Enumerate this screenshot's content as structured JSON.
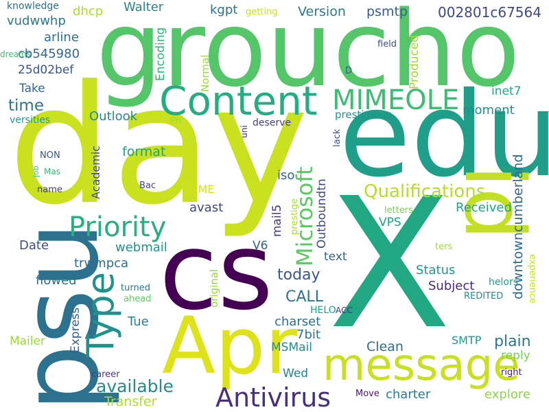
{
  "words": [
    {
      "text": "groucho",
      "color": "#54c568"
    },
    {
      "text": "day",
      "color": "#cae11f"
    },
    {
      "text": "edu",
      "color": "#1f9e89"
    },
    {
      "text": "X",
      "color": "#22a785"
    },
    {
      "text": "cs",
      "color": "#440154"
    },
    {
      "text": "psu",
      "color": "#2c718e"
    },
    {
      "text": "Apr",
      "color": "#dde318"
    },
    {
      "text": "id",
      "color": "#c2df23"
    },
    {
      "text": "message",
      "color": "#c8e020"
    },
    {
      "text": "Content",
      "color": "#25ac82"
    },
    {
      "text": "Type",
      "color": "#21918c"
    },
    {
      "text": "Priority",
      "color": "#29af7f"
    },
    {
      "text": "Antivirus",
      "color": "#46307e"
    },
    {
      "text": "MIMEOLE",
      "color": "#3dbc74"
    },
    {
      "text": "Microsoft",
      "color": "#5cc863"
    },
    {
      "text": "Qualifications",
      "color": "#b5de2b"
    },
    {
      "text": "downtowncumberland",
      "color": "#306a8e"
    },
    {
      "text": "002801c67564",
      "color": "#3f4889"
    },
    {
      "text": "Version",
      "color": "#2a778e"
    },
    {
      "text": "psmtp",
      "color": "#365d8d"
    },
    {
      "text": "kgpt",
      "color": "#2d708e"
    },
    {
      "text": "Walter",
      "color": "#25858e"
    },
    {
      "text": "dhcp",
      "color": "#addc30"
    },
    {
      "text": "knowledge",
      "color": "#2e6f8e"
    },
    {
      "text": "getting",
      "color": "#c8e020"
    },
    {
      "text": "field",
      "color": "#3e4c8a"
    },
    {
      "text": "Produced",
      "color": "#a2da37"
    },
    {
      "text": "vudwwhp",
      "color": "#2a788e"
    },
    {
      "text": "arline",
      "color": "#2e6e8e"
    },
    {
      "text": "cb545980",
      "color": "#31668e"
    },
    {
      "text": "dreams",
      "color": "#3bbb75"
    },
    {
      "text": "Normal",
      "color": "#9bd93c"
    },
    {
      "text": "Encoding",
      "color": "#31b57b"
    },
    {
      "text": "25d02bef",
      "color": "#3a538b"
    },
    {
      "text": "D",
      "color": "#3b528b"
    },
    {
      "text": "Take",
      "color": "#32658e"
    },
    {
      "text": "inet7",
      "color": "#21a685"
    },
    {
      "text": "time",
      "color": "#2b748e"
    },
    {
      "text": "moment",
      "color": "#228d8d"
    },
    {
      "text": "prestigious",
      "color": "#1f958b"
    },
    {
      "text": "Outlook",
      "color": "#24878e"
    },
    {
      "text": "versities",
      "color": "#1e9c89"
    },
    {
      "text": "Ph",
      "color": "#a0da39"
    },
    {
      "text": "uni",
      "color": "#482878"
    },
    {
      "text": "deserve",
      "color": "#423f85"
    },
    {
      "text": "lack",
      "color": "#3b528b"
    },
    {
      "text": "format",
      "color": "#1fa188"
    },
    {
      "text": "Academic",
      "color": "#3e4a89"
    },
    {
      "text": "NON",
      "color": "#3a548c"
    },
    {
      "text": "job",
      "color": "#3dbc74"
    },
    {
      "text": "Mas",
      "color": "#35b779"
    },
    {
      "text": "name",
      "color": "#443983"
    },
    {
      "text": "Bac",
      "color": "#404588"
    },
    {
      "text": "MIME",
      "color": "#d2e21b"
    },
    {
      "text": "iso",
      "color": "#32648e"
    },
    {
      "text": "prestige",
      "color": "#a8db34"
    },
    {
      "text": "Outboundtn",
      "color": "#3e4989"
    },
    {
      "text": "Received",
      "color": "#1fa188"
    },
    {
      "text": "avast",
      "color": "#3f4788"
    },
    {
      "text": "mail5",
      "color": "#453581"
    },
    {
      "text": "letters",
      "color": "#75d054"
    },
    {
      "text": "VPS",
      "color": "#1fa287"
    },
    {
      "text": "webmail",
      "color": "#21918c"
    },
    {
      "text": "V6",
      "color": "#375a8c"
    },
    {
      "text": "Date",
      "color": "#3d4d8a"
    },
    {
      "text": "original",
      "color": "#95d840"
    },
    {
      "text": "ters",
      "color": "#9fda3a"
    },
    {
      "text": "trwmpca",
      "color": "#2f6c8e"
    },
    {
      "text": "text",
      "color": "#33638d"
    },
    {
      "text": "Status",
      "color": "#1f978b"
    },
    {
      "text": "today",
      "color": "#39568c"
    },
    {
      "text": "flowed",
      "color": "#2e6d8e"
    },
    {
      "text": "Subject",
      "color": "#472a7a"
    },
    {
      "text": "helors",
      "color": "#1fa088"
    },
    {
      "text": "experience",
      "color": "#c2df23"
    },
    {
      "text": "CALL",
      "color": "#2b748e"
    },
    {
      "text": "turned",
      "color": "#2a778e"
    },
    {
      "text": "REDITED",
      "color": "#238a8d"
    },
    {
      "text": "ahead",
      "color": "#63cb5f"
    },
    {
      "text": "Express",
      "color": "#355f8d"
    },
    {
      "text": "Tue",
      "color": "#27808e"
    },
    {
      "text": "HELO",
      "color": "#1fa187"
    },
    {
      "text": "ACC",
      "color": "#472d7b"
    },
    {
      "text": "charset",
      "color": "#2d708e"
    },
    {
      "text": "7bit",
      "color": "#2c738e"
    },
    {
      "text": "Mailer",
      "color": "#9bd93c"
    },
    {
      "text": "MSMail",
      "color": "#218e8d"
    },
    {
      "text": "SMTP",
      "color": "#1f988b"
    },
    {
      "text": "plain",
      "color": "#2a788e"
    },
    {
      "text": "Clean",
      "color": "#2f6c8e"
    },
    {
      "text": "reply",
      "color": "#75d054"
    },
    {
      "text": "available",
      "color": "#228c8d"
    },
    {
      "text": "Wed",
      "color": "#26828e"
    },
    {
      "text": "career",
      "color": "#453882"
    },
    {
      "text": "right",
      "color": "#481b6d"
    },
    {
      "text": "Transfer",
      "color": "#b0dd2f"
    },
    {
      "text": "Move",
      "color": "#48186a"
    },
    {
      "text": "charter",
      "color": "#297a8e"
    },
    {
      "text": "explore",
      "color": "#8bd646"
    }
  ]
}
